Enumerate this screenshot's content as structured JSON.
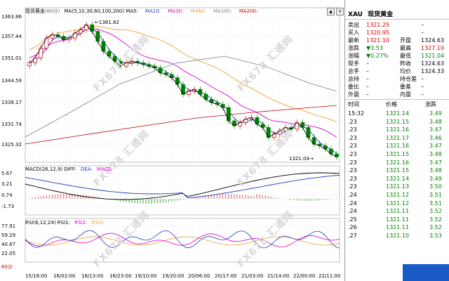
{
  "chart": {
    "title": "现货黄金",
    "period_tag": "(60分)",
    "ma_legend": [
      "MA(5,10,30,60,100,200)",
      "MA5:",
      "MA10:",
      "MA30:",
      "MA60:",
      "MA100:",
      "MA200:"
    ],
    "peak_label": "1361.82",
    "trough_label": "1321.04",
    "y_labels": [
      "1363.86",
      "1357.44",
      "1351.01",
      "1344.59",
      "1338.17",
      "1331.74",
      "1325.32"
    ],
    "x_labels": [
      "15/16:00",
      "16/02:00",
      "16/13:00",
      "16/23:00",
      "19/10:00",
      "19/20:00",
      "20/06:00",
      "20/17:00",
      "21/03:00",
      "21/14:00",
      "22/00:00",
      "22/11:00"
    ],
    "macd_legend": [
      "MACD(26,12,9)",
      "DIFF:",
      "DEA:",
      "MACD:"
    ],
    "macd_y": [
      "5.67",
      "3.21",
      "0.74",
      "-1.73"
    ],
    "rsi_legend": [
      "RSI(6,12,24)",
      "RSI1:",
      "RSI2:",
      "RSI3:"
    ],
    "rsi_y": [
      "77.91",
      "59.29",
      "40.67",
      "22.05"
    ],
    "period_selector": "60分",
    "watermark": "FX678 汇通网",
    "colors": {
      "ma5": "#000000",
      "ma10": "#1f3fbf",
      "ma30": "#d400d4",
      "ma60": "#f0a030",
      "ma100": "#808080",
      "ma200": "#c00000",
      "up": "#c00000",
      "down": "#008000"
    }
  },
  "chart_data": {
    "type": "candlestick",
    "title": "现货黄金",
    "interval": "60分",
    "y_axis_labels": [
      1363.86,
      1357.44,
      1351.01,
      1344.59,
      1338.17,
      1331.74,
      1325.32
    ],
    "ylim": [
      1321.04,
      1363.86
    ],
    "x_labels": [
      "15/16:00",
      "16/02:00",
      "16/13:00",
      "16/23:00",
      "19/10:00",
      "19/20:00",
      "20/06:00",
      "20/17:00",
      "21/03:00",
      "21/14:00",
      "22/00:00",
      "22/11:00"
    ],
    "close_series": [
      1349.5,
      1351.0,
      1354.0,
      1357.0,
      1358.0,
      1357.5,
      1356.5,
      1357.0,
      1358.5,
      1359.5,
      1361.0,
      1359.0,
      1356.0,
      1353.0,
      1351.5,
      1350.0,
      1348.5,
      1349.5,
      1350.0,
      1349.5,
      1349.0,
      1348.5,
      1348.0,
      1346.5,
      1346.0,
      1345.0,
      1343.0,
      1340.0,
      1341.0,
      1341.5,
      1340.0,
      1338.5,
      1337.5,
      1337.0,
      1336.0,
      1332.0,
      1330.5,
      1331.5,
      1332.5,
      1333.0,
      1331.0,
      1330.0,
      1327.0,
      1328.0,
      1329.0,
      1330.0,
      1329.5,
      1331.5,
      1330.0,
      1327.0,
      1325.0,
      1324.5,
      1323.5,
      1322.0,
      1321.1
    ],
    "annotations": [
      {
        "label": "1361.82",
        "type": "high"
      },
      {
        "label": "1321.04",
        "type": "low"
      }
    ],
    "indicators": {
      "macd": {
        "params": "26,12,9",
        "y_axis_labels": [
          5.67,
          3.21,
          0.74,
          -1.73
        ]
      },
      "rsi": {
        "params": "6,12,24",
        "y_axis_labels": [
          77.91,
          59.29,
          40.67,
          22.05
        ]
      }
    }
  },
  "quote": {
    "symbol": "XAU",
    "name": "现货黄金",
    "rows": [
      {
        "l1": "卖出",
        "v1": "1321.25",
        "c1": "red",
        "l2": "",
        "v2": "–",
        "c2": ""
      },
      {
        "l1": "买入",
        "v1": "1320.95",
        "c1": "red",
        "l2": "",
        "v2": "–",
        "c2": ""
      },
      {
        "l1": "最新",
        "v1": "1321.10",
        "c1": "red",
        "l2": "开盘",
        "v2": "1324.63",
        "c2": ""
      },
      {
        "l1": "涨跌",
        "v1": "▼3.53",
        "c1": "grn",
        "l2": "最高",
        "v2": "1327.10",
        "c2": "red"
      },
      {
        "l1": "涨幅",
        "v1": "▼0.27%",
        "c1": "grn",
        "l2": "最低",
        "v2": "1321.04",
        "c2": "grn"
      },
      {
        "l1": "现手",
        "v1": "–",
        "c1": "",
        "l2": "昨收",
        "v2": "1324.63",
        "c2": ""
      },
      {
        "l1": "总手",
        "v1": "–",
        "c1": "",
        "l2": "均价",
        "v2": "1324.33",
        "c2": ""
      },
      {
        "l1": "总持",
        "v1": "–",
        "c1": "",
        "l2": "持仓差",
        "v2": "–",
        "c2": ""
      },
      {
        "l1": "委比",
        "v1": "–",
        "c1": "",
        "l2": "委差",
        "v2": "–",
        "c2": ""
      },
      {
        "l1": "外盘",
        "v1": "–",
        "c1": "",
        "l2": "内盘",
        "v2": "–",
        "c2": ""
      }
    ],
    "tick_headers": [
      "时间",
      "价格",
      "涨跌"
    ],
    "ticks": [
      {
        "t": "15:32",
        "p": "1321.14",
        "d": "3.49"
      },
      {
        "t": ".23",
        "p": "1321.15",
        "d": "3.48"
      },
      {
        "t": ".23",
        "p": "1321.16",
        "d": "3.47"
      },
      {
        "t": ".23",
        "p": "1321.17",
        "d": "3.46"
      },
      {
        "t": ".23",
        "p": "1321.16",
        "d": "3.47"
      },
      {
        "t": ".23",
        "p": "1321.15",
        "d": "3.48"
      },
      {
        "t": ".23",
        "p": "1321.16",
        "d": "3.47"
      },
      {
        "t": ".23",
        "p": "1321.15",
        "d": "3.48"
      },
      {
        "t": ".23",
        "p": "1321.14",
        "d": "3.49"
      },
      {
        "t": ".23",
        "p": "1321.13",
        "d": "3.50"
      },
      {
        "t": ".24",
        "p": "1321.12",
        "d": "3.51"
      },
      {
        "t": ".24",
        "p": "1321.12",
        "d": "3.51"
      },
      {
        "t": ".24",
        "p": "1321.11",
        "d": "3.52"
      },
      {
        "t": ".25",
        "p": "1321.11",
        "d": "3.52"
      },
      {
        "t": ".26",
        "p": "1321.11",
        "d": "3.52"
      },
      {
        "t": ".27",
        "p": "1321.10",
        "d": "3.53"
      }
    ]
  }
}
